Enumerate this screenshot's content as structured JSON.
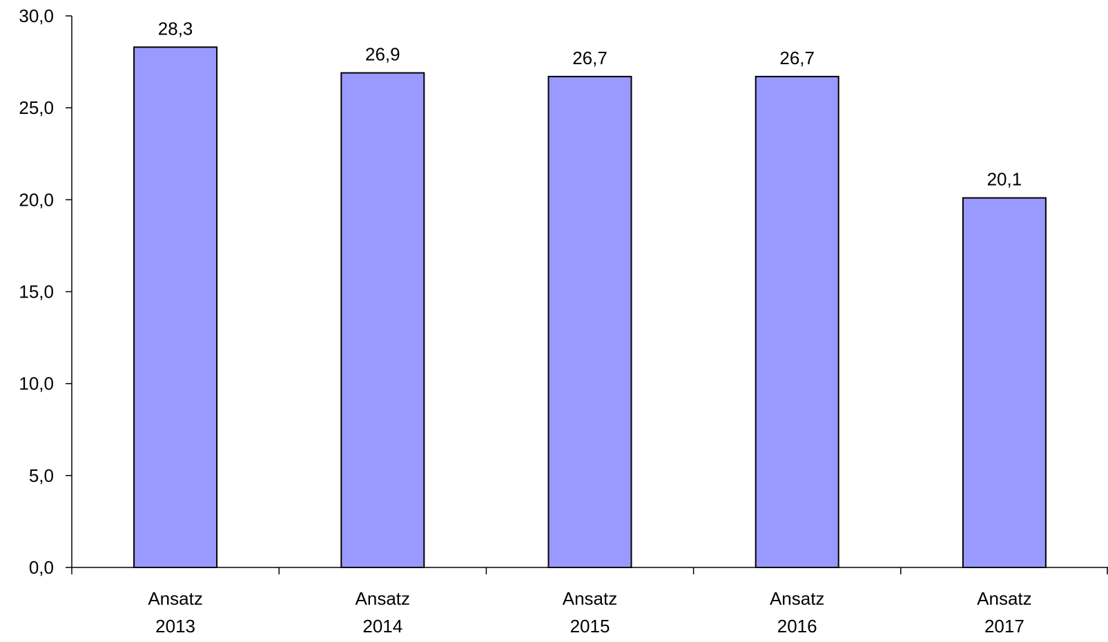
{
  "chart_data": {
    "type": "bar",
    "categories": [
      [
        "Ansatz",
        "2013"
      ],
      [
        "Ansatz",
        "2014"
      ],
      [
        "Ansatz",
        "2015"
      ],
      [
        "Ansatz",
        "2016"
      ],
      [
        "Ansatz",
        "2017"
      ]
    ],
    "values": [
      28.3,
      26.9,
      26.7,
      26.7,
      20.1
    ],
    "value_labels": [
      "28,3",
      "26,9",
      "26,7",
      "26,7",
      "20,1"
    ],
    "title": "",
    "xlabel": "",
    "ylabel": "",
    "ylim": [
      0,
      30
    ],
    "yticks": [
      0,
      5,
      10,
      15,
      20,
      25,
      30
    ],
    "ytick_labels": [
      "0,0",
      "5,0",
      "10,0",
      "15,0",
      "20,0",
      "25,0",
      "30,0"
    ],
    "grid": false,
    "legend": "none",
    "bar_color": "#9999ff",
    "bar_edge_color": "#000000"
  }
}
